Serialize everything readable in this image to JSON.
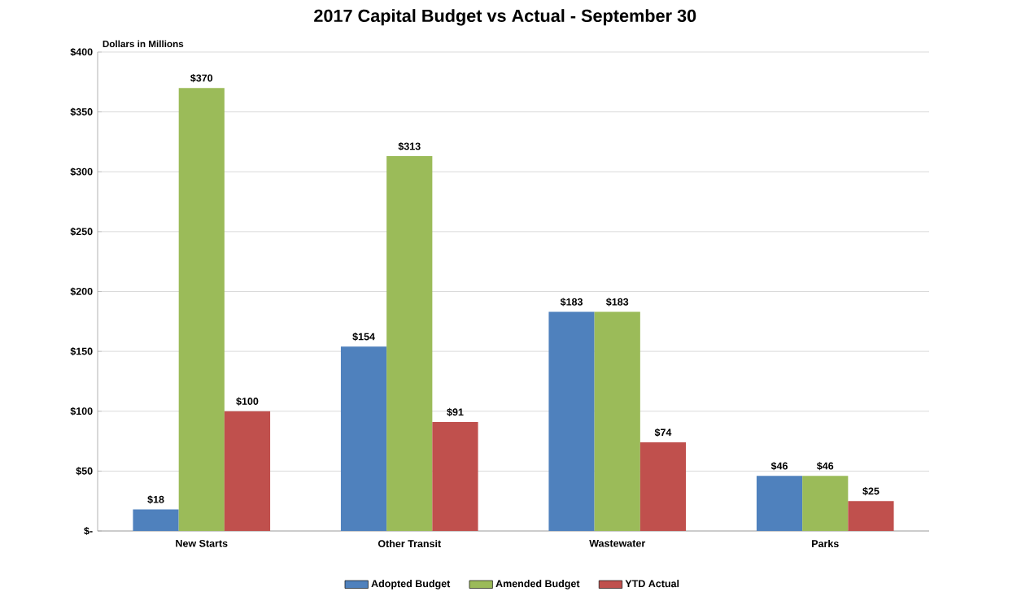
{
  "chart_data": {
    "type": "bar",
    "title": "2017 Capital Budget vs Actual - September 30",
    "ylabel": "Dollars in Millions",
    "categories": [
      "New Starts",
      "Other Transit",
      "Wastewater",
      "Parks"
    ],
    "series": [
      {
        "name": "Adopted Budget",
        "color": "#4f81bd",
        "values": [
          18,
          154,
          183,
          46
        ],
        "value_labels": [
          "$18",
          "$154",
          "$183",
          "$46"
        ]
      },
      {
        "name": "Amended Budget",
        "color": "#9bbb59",
        "values": [
          370,
          313,
          183,
          46
        ],
        "value_labels": [
          "$370",
          "$313",
          "$183",
          "$46"
        ]
      },
      {
        "name": "YTD Actual",
        "color": "#c0504d",
        "values": [
          100,
          91,
          74,
          25
        ],
        "value_labels": [
          "$100",
          "$91",
          "$74",
          "$25"
        ]
      }
    ],
    "ylim": [
      0,
      400
    ],
    "yticks": [
      {
        "value": 0,
        "label": "$-"
      },
      {
        "value": 50,
        "label": "$50"
      },
      {
        "value": 100,
        "label": "$100"
      },
      {
        "value": 150,
        "label": "$150"
      },
      {
        "value": 200,
        "label": "$200"
      },
      {
        "value": 250,
        "label": "$250"
      },
      {
        "value": 300,
        "label": "$300"
      },
      {
        "value": 350,
        "label": "$350"
      },
      {
        "value": 400,
        "label": "$400"
      }
    ],
    "grid": "y",
    "legend": "bottom"
  }
}
